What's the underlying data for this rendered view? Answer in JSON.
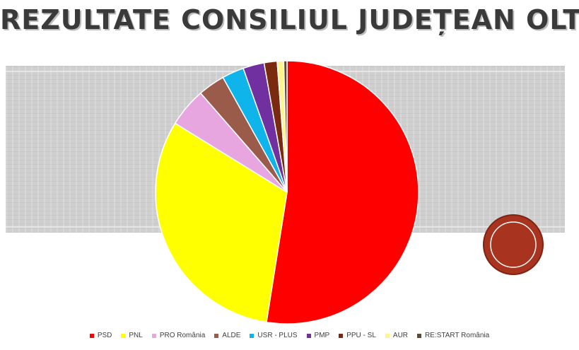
{
  "title": "REZULTATE CONSILIUL JUDEȚEAN OLT",
  "chart_data": {
    "type": "pie",
    "labels": [
      "PSD",
      "PNL",
      "PRO România",
      "ALDE",
      "USR - PLUS",
      "PMP",
      "PPU - SL",
      "AUR",
      "RE:START România"
    ],
    "values": [
      52.5,
      31.3,
      4.8,
      3.3,
      2.7,
      2.6,
      1.6,
      0.8,
      0.4
    ],
    "colors": [
      "#ff0000",
      "#ffff00",
      "#e8a6e0",
      "#9b5b4a",
      "#0fb5ea",
      "#7030a0",
      "#7a2a0e",
      "#fff58c",
      "#5b4a33"
    ],
    "legend_position": "bottom"
  }
}
